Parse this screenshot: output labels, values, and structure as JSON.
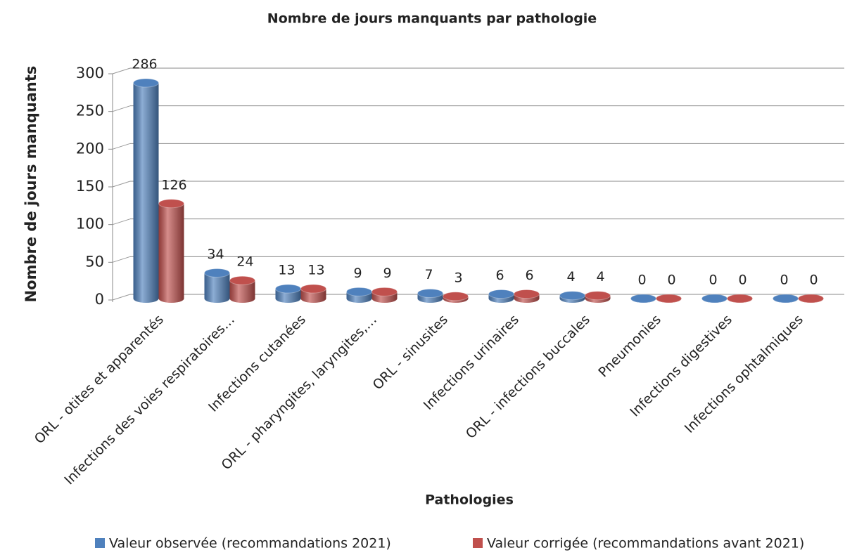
{
  "chart_data": {
    "type": "bar",
    "title": "Nombre de jours manquants par pathologie",
    "x_label": "Pathologies",
    "y_label": "Nombre de jours manquants",
    "categories": [
      "ORL - otites et apparentés",
      "Infections des voies respiratoires…",
      "Infections cutanées",
      "ORL - pharyngites, laryngites,…",
      "ORL - sinusites",
      "Infections urinaires",
      "ORL - infections buccales",
      "Pneumonies",
      "Infections digestives",
      "Infections ophtalmiques"
    ],
    "series": [
      {
        "name": "Valeur observée (recommandations 2021)",
        "color": "#4f81bd",
        "values": [
          286,
          34,
          13,
          9,
          7,
          6,
          4,
          0,
          0,
          0
        ]
      },
      {
        "name": "Valeur corrigée (recommandations avant 2021)",
        "color": "#c0504d",
        "values": [
          126,
          24,
          13,
          9,
          3,
          6,
          4,
          0,
          0,
          0
        ]
      }
    ],
    "ylim": [
      0,
      300
    ],
    "yticks": [
      0,
      50,
      100,
      150,
      200,
      250,
      300
    ],
    "grid": true,
    "legend": "bottom"
  }
}
